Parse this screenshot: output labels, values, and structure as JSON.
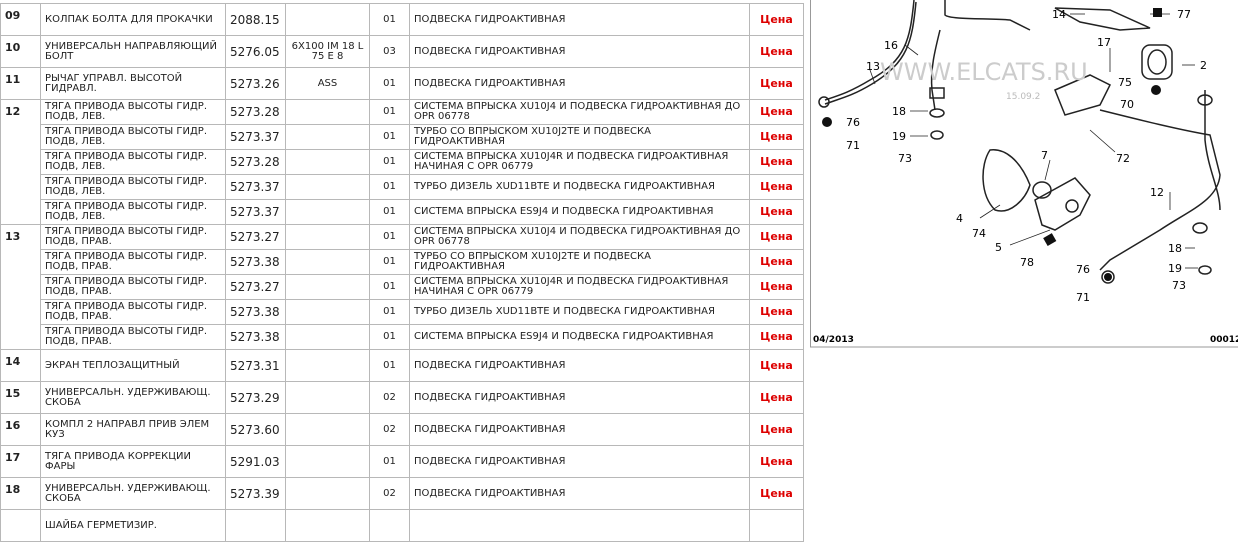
{
  "table": {
    "groups": [
      {
        "num": "09",
        "items": [
          {
            "name": "КОЛПАК БОЛТА ДЛЯ ПРОКАЧКИ",
            "code": "2088.15",
            "qty": "01",
            "desc": "ПОДВЕСКА ГИДРОАКТИВНАЯ",
            "price": "Цена"
          }
        ]
      },
      {
        "num": "10",
        "items": [
          {
            "name": "УНИВЕРСАЛЬН НАПРАВЛЯЮЩИЙ БОЛТ",
            "code": "5276.05",
            "note": "6X100 IM 18 L 75 E 8",
            "qty": "03",
            "desc": "ПОДВЕСКА ГИДРОАКТИВНАЯ",
            "price": "Цена"
          }
        ]
      },
      {
        "num": "11",
        "items": [
          {
            "name": "РЫЧАГ УПРАВЛ. ВЫСОТОЙ ГИДРАВЛ.",
            "code": "5273.26",
            "note": "ASS",
            "qty": "01",
            "desc": "ПОДВЕСКА ГИДРОАКТИВНАЯ",
            "price": "Цена"
          }
        ]
      },
      {
        "num": "12",
        "items": [
          {
            "name": "ТЯГА ПРИВОДА ВЫСОТЫ ГИДР. ПОДВ, ЛЕВ.",
            "code": "5273.28",
            "qty": "01",
            "desc": "СИСТЕМА ВПРЫСКА XU10J4 И ПОДВЕСКА ГИДРОАКТИВНАЯ ДО OPR 06778",
            "price": "Цена"
          },
          {
            "name": "ТЯГА ПРИВОДА ВЫСОТЫ ГИДР. ПОДВ, ЛЕВ.",
            "code": "5273.37",
            "qty": "01",
            "desc": "ТУРБО СО ВПРЫСКОМ XU10J2TE И ПОДВЕСКА ГИДРОАКТИВНАЯ",
            "price": "Цена"
          },
          {
            "name": "ТЯГА ПРИВОДА ВЫСОТЫ ГИДР. ПОДВ, ЛЕВ.",
            "code": "5273.28",
            "qty": "01",
            "desc": "СИСТЕМА ВПРЫСКА XU10J4R И ПОДВЕСКА ГИДРОАКТИВНАЯ НАЧИНАЯ С OPR 06779",
            "price": "Цена"
          },
          {
            "name": "ТЯГА ПРИВОДА ВЫСОТЫ ГИДР. ПОДВ, ЛЕВ.",
            "code": "5273.37",
            "qty": "01",
            "desc": "ТУРБО ДИЗЕЛЬ XUD11BTE И ПОДВЕСКА ГИДРОАКТИВНАЯ",
            "price": "Цена"
          },
          {
            "name": "ТЯГА ПРИВОДА ВЫСОТЫ ГИДР. ПОДВ, ЛЕВ.",
            "code": "5273.37",
            "qty": "01",
            "desc": "СИСТЕМА ВПРЫСКА ES9J4 И ПОДВЕСКА ГИДРОАКТИВНАЯ",
            "price": "Цена"
          }
        ]
      },
      {
        "num": "13",
        "items": [
          {
            "name": "ТЯГА ПРИВОДА ВЫСОТЫ ГИДР. ПОДВ, ПРАВ.",
            "code": "5273.27",
            "qty": "01",
            "desc": "СИСТЕМА ВПРЫСКА XU10J4 И ПОДВЕСКА ГИДРОАКТИВНАЯ ДО OPR 06778",
            "price": "Цена"
          },
          {
            "name": "ТЯГА ПРИВОДА ВЫСОТЫ ГИДР. ПОДВ, ПРАВ.",
            "code": "5273.38",
            "qty": "01",
            "desc": "ТУРБО СО ВПРЫСКОМ XU10J2TE И ПОДВЕСКА ГИДРОАКТИВНАЯ",
            "price": "Цена"
          },
          {
            "name": "ТЯГА ПРИВОДА ВЫСОТЫ ГИДР. ПОДВ, ПРАВ.",
            "code": "5273.27",
            "qty": "01",
            "desc": "СИСТЕМА ВПРЫСКА XU10J4R И ПОДВЕСКА ГИДРОАКТИВНАЯ НАЧИНАЯ С OPR 06779",
            "price": "Цена"
          },
          {
            "name": "ТЯГА ПРИВОДА ВЫСОТЫ ГИДР. ПОДВ, ПРАВ.",
            "code": "5273.38",
            "qty": "01",
            "desc": "ТУРБО ДИЗЕЛЬ XUD11BTE И ПОДВЕСКА ГИДРОАКТИВНАЯ",
            "price": "Цена"
          },
          {
            "name": "ТЯГА ПРИВОДА ВЫСОТЫ ГИДР. ПОДВ, ПРАВ.",
            "code": "5273.38",
            "qty": "01",
            "desc": "СИСТЕМА ВПРЫСКА ES9J4 И ПОДВЕСКА ГИДРОАКТИВНАЯ",
            "price": "Цена"
          }
        ]
      },
      {
        "num": "14",
        "items": [
          {
            "name": "ЭКРАН ТЕПЛОЗАЩИТНЫЙ",
            "code": "5273.31",
            "qty": "01",
            "desc": "ПОДВЕСКА ГИДРОАКТИВНАЯ",
            "price": "Цена"
          }
        ]
      },
      {
        "num": "15",
        "items": [
          {
            "name": "УНИВЕРСАЛЬН. УДЕРЖИВАЮЩ. СКОБА",
            "code": "5273.29",
            "qty": "02",
            "desc": "ПОДВЕСКА ГИДРОАКТИВНАЯ",
            "price": "Цена"
          }
        ]
      },
      {
        "num": "16",
        "items": [
          {
            "name": "КОМПЛ 2 НАПРАВЛ ПРИВ ЭЛЕМ КУЗ",
            "code": "5273.60",
            "qty": "02",
            "desc": "ПОДВЕСКА ГИДРОАКТИВНАЯ",
            "price": "Цена"
          }
        ]
      },
      {
        "num": "17",
        "items": [
          {
            "name": "ТЯГА ПРИВОДА КОРРЕКЦИИ ФАРЫ",
            "code": "5291.03",
            "qty": "01",
            "desc": "ПОДВЕСКА ГИДРОАКТИВНАЯ",
            "price": "Цена"
          }
        ]
      },
      {
        "num": "18",
        "items": [
          {
            "name": "УНИВЕРСАЛЬН. УДЕРЖИВАЮЩ. СКОБА",
            "code": "5273.39",
            "qty": "02",
            "desc": "ПОДВЕСКА ГИДРОАКТИВНАЯ",
            "price": "Цена"
          }
        ]
      },
      {
        "items": [
          {
            "name": "ШАЙБА ГЕРМЕТИЗИР."
          }
        ]
      }
    ]
  },
  "diagram": {
    "labels": [
      "14",
      "77",
      "16",
      "17",
      "2",
      "13",
      "75",
      "70",
      "76",
      "18",
      "71",
      "19",
      "73",
      "7",
      "72",
      "12",
      "4",
      "74",
      "5",
      "78",
      "18",
      "19",
      "73",
      "76",
      "71"
    ],
    "watermark": "WWW.ELCATS.RU",
    "stamp": "15.09.2",
    "date": "04/2013",
    "code": "00012"
  }
}
